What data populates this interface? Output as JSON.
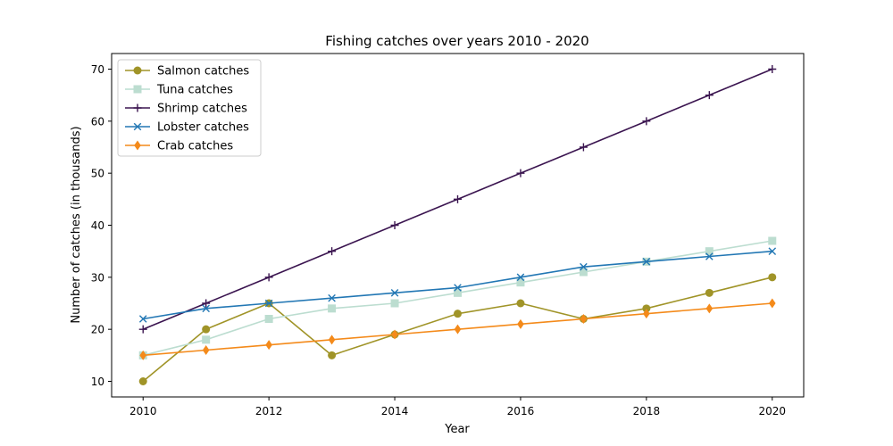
{
  "chart_data": {
    "type": "line",
    "title": "Fishing catches over years 2010 - 2020",
    "xlabel": "Year",
    "ylabel": "Number of catches (in thousands)",
    "x": [
      2010,
      2011,
      2012,
      2013,
      2014,
      2015,
      2016,
      2017,
      2018,
      2019,
      2020
    ],
    "xlim": [
      2009.5,
      2020.5
    ],
    "ylim": [
      7,
      73
    ],
    "x_ticks": [
      2010,
      2012,
      2014,
      2016,
      2018,
      2020
    ],
    "y_ticks": [
      10,
      20,
      30,
      40,
      50,
      60,
      70
    ],
    "grid": false,
    "legend_position": "top-left",
    "series": [
      {
        "name": "Salmon catches",
        "color": "#a09428",
        "marker": "circle",
        "values": [
          10,
          20,
          25,
          15,
          19,
          23,
          25,
          22,
          24,
          27,
          30
        ]
      },
      {
        "name": "Tuna catches",
        "color": "#bcddd0",
        "marker": "square",
        "values": [
          15,
          18,
          22,
          24,
          25,
          27,
          29,
          31,
          33,
          35,
          37
        ]
      },
      {
        "name": "Shrimp catches",
        "color": "#3b1550",
        "marker": "plus",
        "values": [
          20,
          25,
          30,
          35,
          40,
          45,
          50,
          55,
          60,
          65,
          70
        ]
      },
      {
        "name": "Lobster catches",
        "color": "#2277b4",
        "marker": "x",
        "values": [
          22,
          24,
          25,
          26,
          27,
          28,
          30,
          32,
          33,
          34,
          35
        ]
      },
      {
        "name": "Crab catches",
        "color": "#f48a1a",
        "marker": "diamond",
        "values": [
          15,
          16,
          17,
          18,
          19,
          20,
          21,
          22,
          23,
          24,
          25
        ]
      }
    ]
  }
}
